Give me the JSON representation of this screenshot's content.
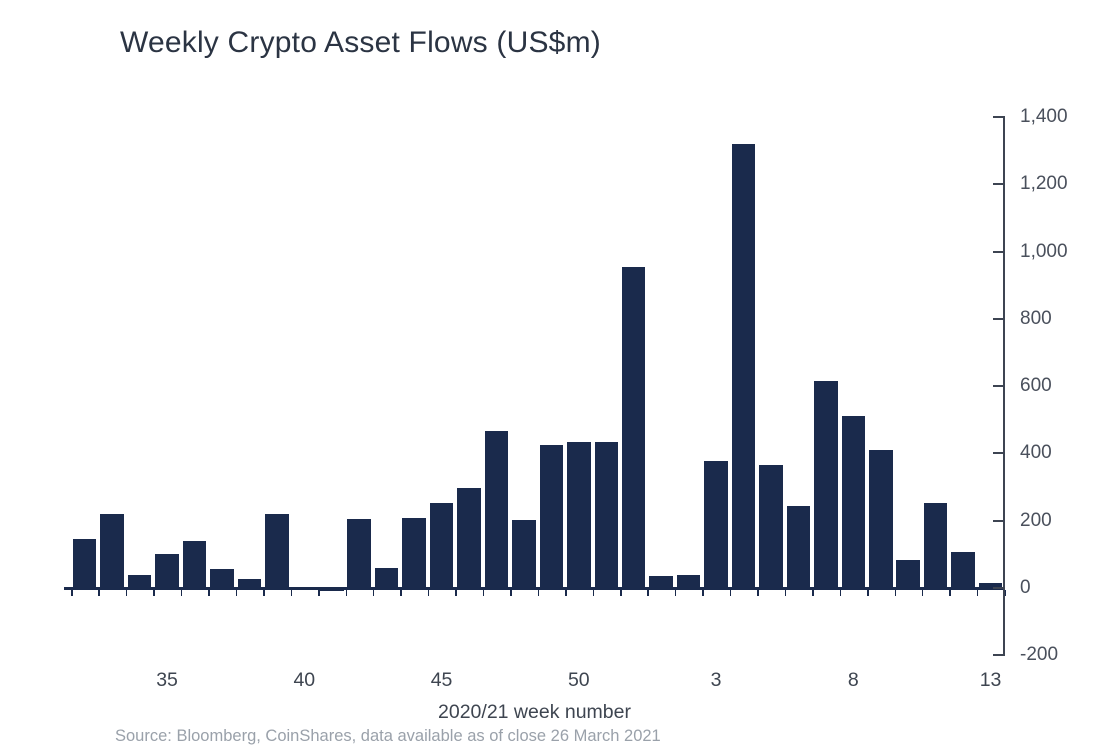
{
  "chart_data": {
    "type": "bar",
    "title": "Weekly Crypto Asset Flows (US$m)",
    "xlabel": "2020/21 week number",
    "ylabel": "",
    "source": "Source: Bloomberg, CoinShares, data available as of close 26 March 2021",
    "bar_color": "#1a2a4c",
    "axis_color": "#3d4452",
    "grid": "off",
    "legend": "none",
    "ylim": [
      -200,
      1400
    ],
    "categories": [
      "32",
      "33",
      "34",
      "35",
      "36",
      "37",
      "38",
      "39",
      "40",
      "41",
      "42",
      "43",
      "44",
      "45",
      "46",
      "47",
      "48",
      "49",
      "50",
      "51",
      "52",
      "1",
      "2",
      "3",
      "4",
      "5",
      "6",
      "7",
      "8",
      "9",
      "10",
      "11",
      "12",
      "13"
    ],
    "values": [
      145,
      220,
      40,
      100,
      140,
      55,
      28,
      220,
      2,
      -10,
      205,
      60,
      208,
      252,
      297,
      467,
      201,
      425,
      435,
      435,
      955,
      36,
      40,
      377,
      1320,
      366,
      244,
      614,
      510,
      409,
      83,
      254,
      108,
      16
    ],
    "y_ticks": [
      {
        "value": 1400,
        "label": "1,400"
      },
      {
        "value": 1200,
        "label": "1,200"
      },
      {
        "value": 1000,
        "label": "1,000"
      },
      {
        "value": 800,
        "label": "800"
      },
      {
        "value": 600,
        "label": "600"
      },
      {
        "value": 400,
        "label": "400"
      },
      {
        "value": 200,
        "label": "200"
      },
      {
        "value": 0,
        "label": "0"
      },
      {
        "value": -200,
        "label": "-200"
      }
    ],
    "x_tick_labels": [
      {
        "label": "35",
        "index": 3
      },
      {
        "label": "40",
        "index": 8
      },
      {
        "label": "45",
        "index": 13
      },
      {
        "label": "50",
        "index": 18
      },
      {
        "label": "3",
        "index": 23
      },
      {
        "label": "8",
        "index": 28
      },
      {
        "label": "13",
        "index": 33
      }
    ]
  }
}
